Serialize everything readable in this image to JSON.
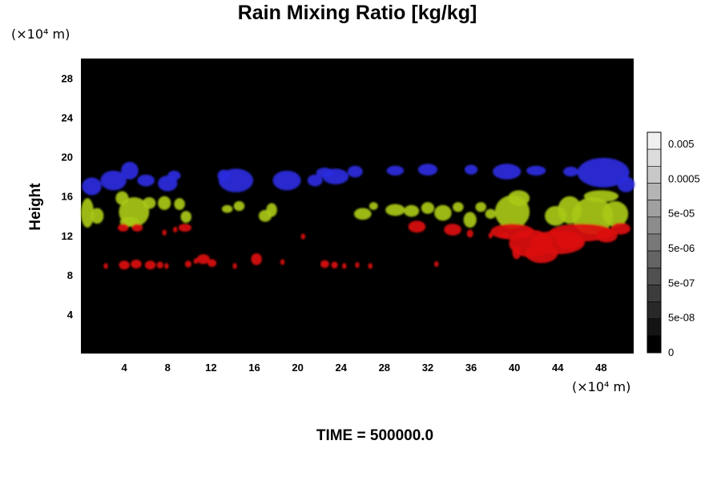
{
  "chart_data": {
    "type": "heatmap",
    "title": "Rain Mixing Ratio [kg/kg]",
    "ylabel": "Height",
    "y_unit": "(×10⁴ m)",
    "x_unit": "(×10⁴ m)",
    "x_ticks": [
      "4",
      "8",
      "12",
      "16",
      "20",
      "24",
      "28",
      "32",
      "36",
      "40",
      "44",
      "48"
    ],
    "y_ticks": [
      "4",
      "8",
      "12",
      "16",
      "20",
      "24",
      "28"
    ],
    "xlim": [
      0,
      51
    ],
    "ylim": [
      0,
      30
    ],
    "background": "#000000",
    "colorbar": {
      "labels": [
        "0.005",
        "0.0005",
        "5e-05",
        "5e-06",
        "5e-07",
        "5e-08",
        "0"
      ],
      "colors": [
        "#f0f0f0",
        "#dcdcdc",
        "#c8c8c8",
        "#b4b4b4",
        "#a0a0a0",
        "#8c8c8c",
        "#787878",
        "#646464",
        "#505050",
        "#3c3c3c",
        "#282828",
        "#141414",
        "#000000"
      ]
    },
    "footer": "TIME = 500000.0",
    "layers": [
      {
        "name": "blue",
        "color": "#2a2ae0",
        "blobs": [
          [
            1,
            17,
            0.9,
            0.9
          ],
          [
            3,
            17.6,
            1.2,
            1.0
          ],
          [
            4.5,
            18.6,
            0.8,
            0.9
          ],
          [
            6,
            17.6,
            0.8,
            0.6
          ],
          [
            8,
            17.3,
            0.9,
            0.8
          ],
          [
            8.6,
            18.1,
            0.6,
            0.5
          ],
          [
            14.3,
            17.6,
            1.6,
            1.2
          ],
          [
            13.2,
            18.1,
            0.6,
            0.6
          ],
          [
            19,
            17.6,
            1.3,
            1.0
          ],
          [
            21.6,
            17.6,
            0.7,
            0.6
          ],
          [
            23.5,
            18.0,
            1.2,
            0.8
          ],
          [
            22.5,
            18.4,
            0.8,
            0.5
          ],
          [
            25.3,
            18.5,
            0.7,
            0.6
          ],
          [
            29,
            18.6,
            0.8,
            0.5
          ],
          [
            32,
            18.7,
            0.9,
            0.6
          ],
          [
            36,
            18.7,
            0.6,
            0.5
          ],
          [
            39.3,
            18.5,
            1.3,
            0.8
          ],
          [
            42,
            18.6,
            0.9,
            0.5
          ],
          [
            45.2,
            18.5,
            0.7,
            0.5
          ],
          [
            48.2,
            18.4,
            2.4,
            1.5
          ],
          [
            50.3,
            17.2,
            0.8,
            0.8
          ]
        ]
      },
      {
        "name": "yellowgreen",
        "color": "#a8c818",
        "blobs": [
          [
            0.6,
            14.3,
            0.6,
            1.5
          ],
          [
            1.5,
            14.0,
            0.6,
            0.8
          ],
          [
            4.9,
            14.4,
            1.4,
            1.5
          ],
          [
            3.8,
            15.8,
            0.6,
            0.7
          ],
          [
            4.5,
            13.4,
            0.9,
            0.5
          ],
          [
            6.3,
            15.3,
            0.6,
            0.6
          ],
          [
            7.7,
            15.3,
            0.6,
            0.7
          ],
          [
            9.1,
            15.2,
            0.5,
            0.6
          ],
          [
            9.7,
            13.9,
            0.5,
            0.6
          ],
          [
            13.5,
            14.7,
            0.5,
            0.4
          ],
          [
            14.6,
            15.0,
            0.5,
            0.5
          ],
          [
            17,
            14.0,
            0.6,
            0.6
          ],
          [
            17.6,
            14.6,
            0.5,
            0.7
          ],
          [
            26,
            14.2,
            0.8,
            0.6
          ],
          [
            27,
            15.0,
            0.4,
            0.4
          ],
          [
            29,
            14.6,
            0.9,
            0.6
          ],
          [
            30.5,
            14.5,
            0.7,
            0.6
          ],
          [
            32,
            14.8,
            0.6,
            0.6
          ],
          [
            33.4,
            14.3,
            0.8,
            0.8
          ],
          [
            34.8,
            14.9,
            0.5,
            0.5
          ],
          [
            35.9,
            13.6,
            0.6,
            0.8
          ],
          [
            36.9,
            14.9,
            0.5,
            0.5
          ],
          [
            37.8,
            14.2,
            0.5,
            0.5
          ],
          [
            39.8,
            14.4,
            1.6,
            1.7
          ],
          [
            40.4,
            15.8,
            1.0,
            0.8
          ],
          [
            43.8,
            14.0,
            1.0,
            1.0
          ],
          [
            45.1,
            14.6,
            1.1,
            1.4
          ],
          [
            47.2,
            14.0,
            1.9,
            1.9
          ],
          [
            49.3,
            14.2,
            1.2,
            1.3
          ],
          [
            48.0,
            16.0,
            1.6,
            0.6
          ]
        ]
      },
      {
        "name": "red",
        "color": "#dc1010",
        "blobs": [
          [
            3.9,
            12.8,
            0.5,
            0.4
          ],
          [
            5.2,
            12.8,
            0.5,
            0.4
          ],
          [
            7.7,
            12.3,
            0.2,
            0.3
          ],
          [
            8.7,
            12.6,
            0.2,
            0.3
          ],
          [
            9.6,
            12.8,
            0.6,
            0.4
          ],
          [
            20.5,
            11.9,
            0.2,
            0.3
          ],
          [
            31,
            12.9,
            0.8,
            0.6
          ],
          [
            34.3,
            12.6,
            0.8,
            0.6
          ],
          [
            35.9,
            12.2,
            0.3,
            0.4
          ],
          [
            37.8,
            12.0,
            0.2,
            0.3
          ],
          [
            39,
            12.0,
            0.5,
            0.3
          ],
          [
            39.8,
            12.4,
            2.0,
            0.8
          ],
          [
            41.5,
            11.2,
            2.0,
            1.4
          ],
          [
            42.5,
            10.2,
            1.5,
            1.0
          ],
          [
            40.2,
            10.3,
            0.4,
            0.7
          ],
          [
            44,
            11.3,
            2.5,
            1.2
          ],
          [
            46.2,
            12.3,
            3.0,
            0.9
          ],
          [
            48.5,
            12.0,
            1.0,
            0.7
          ],
          [
            49.8,
            12.7,
            0.9,
            0.6
          ],
          [
            45,
            11.5,
            1.2,
            0.9
          ],
          [
            2.3,
            8.9,
            0.2,
            0.3
          ],
          [
            4,
            9.0,
            0.5,
            0.45
          ],
          [
            5.1,
            9.1,
            0.5,
            0.45
          ],
          [
            6.4,
            9.0,
            0.5,
            0.45
          ],
          [
            7.3,
            9.0,
            0.3,
            0.35
          ],
          [
            7.9,
            8.9,
            0.2,
            0.3
          ],
          [
            9.9,
            9.1,
            0.3,
            0.35
          ],
          [
            10.6,
            9.4,
            0.2,
            0.3
          ],
          [
            11.3,
            9.6,
            0.6,
            0.5
          ],
          [
            12.1,
            9.2,
            0.4,
            0.4
          ],
          [
            14.2,
            8.9,
            0.2,
            0.3
          ],
          [
            16.2,
            9.6,
            0.5,
            0.6
          ],
          [
            18.6,
            9.3,
            0.2,
            0.3
          ],
          [
            22.5,
            9.1,
            0.4,
            0.4
          ],
          [
            23.4,
            9.0,
            0.3,
            0.35
          ],
          [
            24.3,
            8.9,
            0.2,
            0.3
          ],
          [
            25.5,
            9.0,
            0.2,
            0.3
          ],
          [
            26.7,
            8.9,
            0.2,
            0.3
          ],
          [
            32.8,
            9.1,
            0.2,
            0.3
          ]
        ]
      }
    ]
  }
}
